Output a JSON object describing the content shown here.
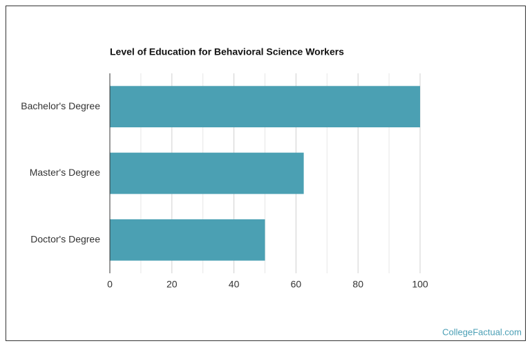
{
  "chart_data": {
    "type": "bar",
    "orientation": "horizontal",
    "title": "Level of Education for Behavioral Science Workers",
    "categories": [
      "Bachelor's Degree",
      "Master's Degree",
      "Doctor's Degree"
    ],
    "values": [
      100,
      62.5,
      50
    ],
    "color": "#4ba0b3",
    "xlim": [
      0,
      100
    ],
    "xticks": [
      0,
      20,
      40,
      60,
      80,
      100
    ],
    "minor_xticks": [
      10,
      30,
      50,
      70,
      90
    ],
    "grid": true
  },
  "watermark": "CollegeFactual.com"
}
